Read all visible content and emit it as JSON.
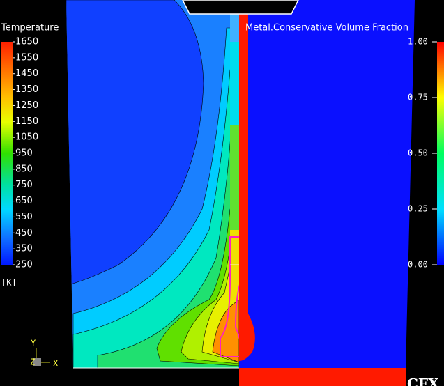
{
  "left_legend": {
    "title": "Temperature",
    "labels": [
      "1650",
      "1550",
      "1450",
      "1350",
      "1250",
      "1150",
      "1050",
      "950",
      "850",
      "750",
      "650",
      "550",
      "450",
      "350",
      "250"
    ],
    "unit": "[K]"
  },
  "right_legend": {
    "title": "Metal.Conservative Volume Fraction",
    "labels": [
      "1.00",
      "0.75",
      "0.50",
      "0.25",
      "0.00"
    ]
  },
  "axes": {
    "y": "Y",
    "z": "Z",
    "x": "X"
  },
  "logo": "CFX"
}
